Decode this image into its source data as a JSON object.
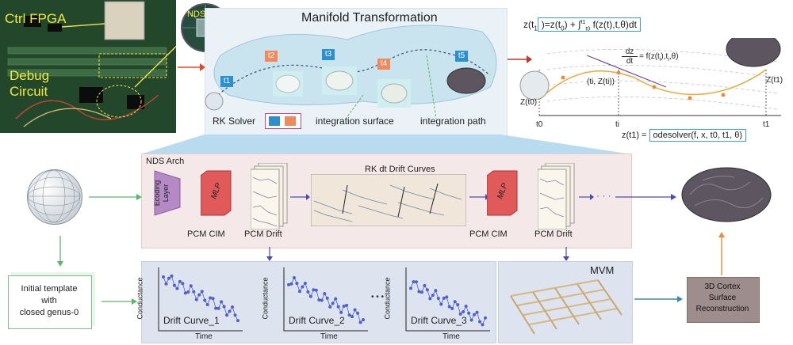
{
  "photo": {
    "ctrl_fpga": "Ctrl FPGA",
    "debug_circuit_line1": "Debug",
    "debug_circuit_line2": "Circuit",
    "nds_chip": "NDS Chip"
  },
  "manifold": {
    "title": "Manifold Transformation",
    "steps": [
      "t1",
      "t2",
      "t3",
      "t4",
      "t5"
    ],
    "rk_solver": "RK Solver",
    "integration_surface": "integration surface",
    "integration_path": "integration path",
    "colors": {
      "step_blue": "#2b8fd0",
      "step_orange": "#f08a5d"
    }
  },
  "ode": {
    "eq_top_lhs": "z(t",
    "eq_top_sub": "1",
    "eq_top_rhs": ")=z(t",
    "eq_top_sub0": "0",
    "eq_top_int": ") + ∫",
    "eq_top_int_upper": "t1",
    "eq_top_int_lower": "t0",
    "eq_top_tail": "f(z(t),t,θ)dt",
    "dz_num": "dz",
    "dz_den": "dt",
    "dz_rhs": "= f(z(t",
    "dz_rhs_sub": "i",
    "dz_rhs_tail": "),t",
    "dz_rhs_sub2": "i",
    "dz_rhs_end": ",θ)",
    "point_label": "(ti, Z(ti))",
    "z_t0": "Z(t0)",
    "z_t1": "Z(t1)",
    "axis_t0": "t0",
    "axis_ti": "ti",
    "axis_t1": "t1",
    "eq_bottom_lhs": "z(t1) =",
    "eq_bottom_rhs": "odesolver(f, x, t0, t1, θ)"
  },
  "arch": {
    "title": "NDS Arch",
    "encoding_line1": "Ecoding",
    "encoding_line2": "Layer",
    "mlp": "MLP",
    "pcm_cim": "PCM CIM",
    "pcm_drift": "PCM Drift",
    "rk_drift_title": "RK dt Drift Curves",
    "ellipsis": "· · ·",
    "colors": {
      "arch_bg": "#f4e8e8",
      "mlp": "#e05a5a",
      "encoding": "#b589c6"
    }
  },
  "template": {
    "line1": "Initial template",
    "line2": "with",
    "line3": "closed genus-0"
  },
  "drift": {
    "ylabel": "Conductance",
    "xlabel": "Time",
    "curves": [
      "Drift Curve_1",
      "Drift Curve_2",
      "Drift Curve_3"
    ],
    "dots": "• • •",
    "colors": {
      "panel_bg": "#dde3ef",
      "points": "#4f5fd0"
    }
  },
  "mvm": {
    "label": "MVM"
  },
  "recon": {
    "line1": "3D Cortex",
    "line2": "Surface",
    "line3": "Reconstruction",
    "colors": {
      "bg": "#9e8d8d"
    }
  }
}
